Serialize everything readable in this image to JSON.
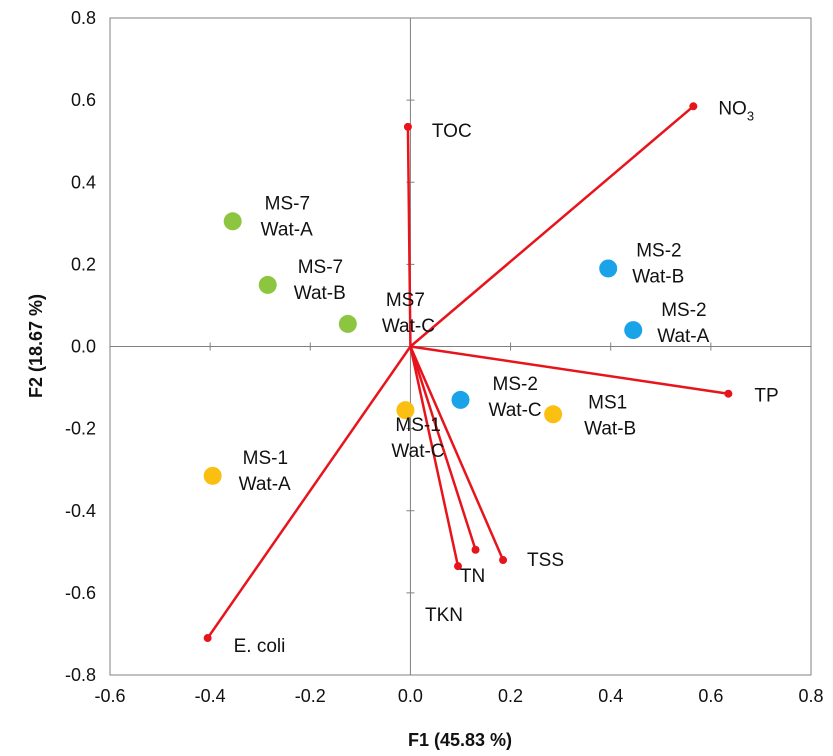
{
  "chart_data": {
    "type": "scatter",
    "title": "",
    "xlabel": "F1 (45.83 %)",
    "ylabel": "F2 (18.67 %)",
    "xlim": [
      -0.6,
      0.8
    ],
    "ylim": [
      -0.8,
      0.8
    ],
    "xticks": [
      -0.6,
      -0.4,
      -0.2,
      0.0,
      0.2,
      0.4,
      0.6,
      0.8
    ],
    "yticks": [
      -0.8,
      -0.6,
      -0.4,
      -0.2,
      0.0,
      0.2,
      0.4,
      0.6,
      0.8
    ],
    "xtick_labels": [
      "-0.6",
      "-0.4",
      "-0.2",
      "0.0",
      "0.2",
      "0.4",
      "0.6",
      "0.8"
    ],
    "ytick_labels": [
      "-0.8",
      "-0.6",
      "-0.4",
      "-0.2",
      "0.0",
      "0.2",
      "0.4",
      "0.6",
      "0.8"
    ],
    "grid": false,
    "colors": {
      "vector": "#e8141c",
      "green": "#8cc640",
      "blue": "#1aa3e8",
      "orange": "#fbbf12"
    },
    "vectors": [
      {
        "name": "NO3",
        "label": "NO",
        "sub": "3",
        "x": 0.565,
        "y": 0.585
      },
      {
        "name": "TOC",
        "label": "TOC",
        "x": -0.005,
        "y": 0.535
      },
      {
        "name": "TP",
        "label": "TP",
        "x": 0.635,
        "y": -0.115
      },
      {
        "name": "TSS",
        "label": "TSS",
        "x": 0.185,
        "y": -0.52
      },
      {
        "name": "TN",
        "label": "TN",
        "x": 0.13,
        "y": -0.495
      },
      {
        "name": "TKN",
        "label": "TKN",
        "x": 0.095,
        "y": -0.535
      },
      {
        "name": "E. coli",
        "label": "E. coli",
        "x": -0.405,
        "y": -0.71
      }
    ],
    "points": [
      {
        "x": -0.355,
        "y": 0.305,
        "color": "green",
        "line1": "MS-7",
        "line2": "Wat-A"
      },
      {
        "x": -0.285,
        "y": 0.15,
        "color": "green",
        "line1": "MS-7",
        "line2": "Wat-B"
      },
      {
        "x": -0.125,
        "y": 0.055,
        "color": "green",
        "line1": "MS7",
        "line2": "Wat-C"
      },
      {
        "x": 0.395,
        "y": 0.19,
        "color": "blue",
        "line1": "MS-2",
        "line2": "Wat-B"
      },
      {
        "x": 0.445,
        "y": 0.04,
        "color": "blue",
        "line1": "MS-2",
        "line2": "Wat-A"
      },
      {
        "x": 0.1,
        "y": -0.13,
        "color": "blue",
        "line1": "MS-2",
        "line2": "Wat-C"
      },
      {
        "x": 0.285,
        "y": -0.165,
        "color": "orange",
        "line1": "MS1",
        "line2": "Wat-B"
      },
      {
        "x": -0.01,
        "y": -0.155,
        "color": "orange",
        "line1": "MS-1",
        "line2": "Wat-C"
      },
      {
        "x": -0.395,
        "y": -0.315,
        "color": "orange",
        "line1": "MS-1",
        "line2": "Wat-A"
      }
    ]
  }
}
